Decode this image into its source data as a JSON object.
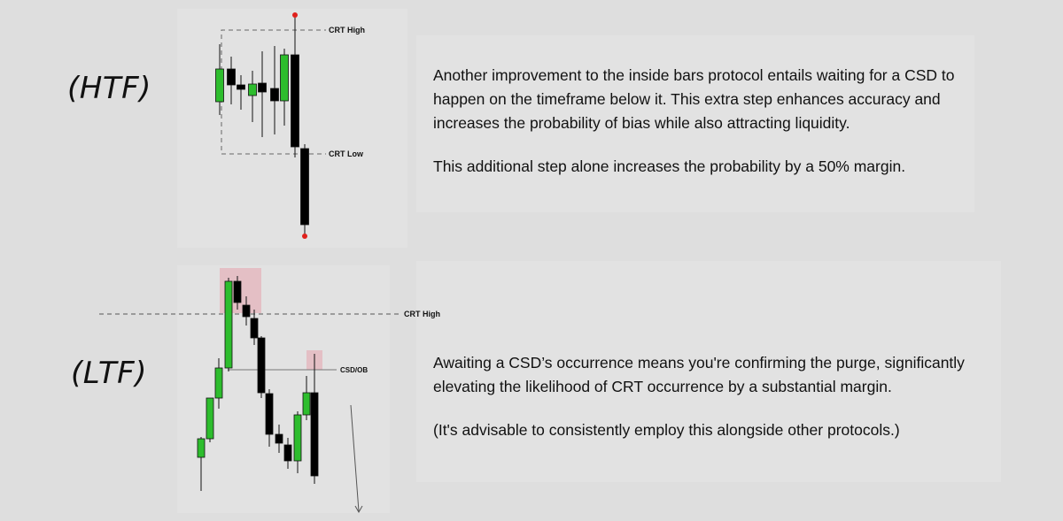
{
  "htf": {
    "label": "(HTF)",
    "crt_high_label": "CRT High",
    "crt_low_label": "CRT Low",
    "paragraphs": [
      "Another improvement to the inside bars protocol entails waiting for a CSD to happen on the timeframe below it. This extra step enhances accuracy and increases the probability of bias while also attracting liquidity.",
      "This additional step alone increases the probability by a 50% margin."
    ]
  },
  "ltf": {
    "label": "(LTF)",
    "crt_high_label": "CRT High",
    "csd_label": "CSD/OB",
    "paragraphs": [
      "Awaiting a CSD’s occurrence means you're confirming the purge, significantly elevating the likelihood of CRT occurrence by a substantial margin.",
      "(It's advisable to consistently employ this alongside other protocols.)"
    ]
  },
  "colors": {
    "bull": "#2dbd2d",
    "bear": "#000000",
    "highlight": "#e4b9bf",
    "purge_dot": "#e0201c"
  }
}
